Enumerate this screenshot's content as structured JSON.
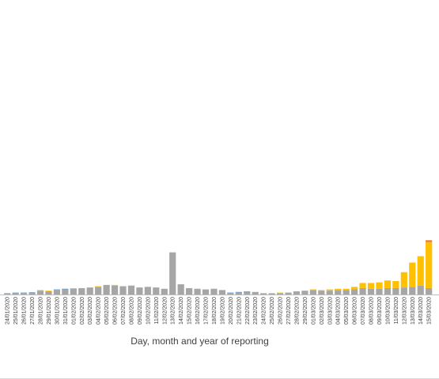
{
  "chart_data": {
    "type": "bar",
    "stacked": true,
    "xlabel": "Day, month and year of reporting",
    "ylabel": "",
    "legend": "none",
    "grid": false,
    "ylim": [
      0,
      90
    ],
    "categories": [
      "24/01/2020",
      "25/01/2020",
      "26/01/2020",
      "27/01/2020",
      "28/01/2020",
      "29/01/2020",
      "30/01/2020",
      "31/01/2020",
      "01/02/2020",
      "02/02/2020",
      "03/02/2020",
      "04/02/2020",
      "05/02/2020",
      "06/02/2020",
      "07/02/2020",
      "08/02/2020",
      "09/02/2020",
      "10/02/2020",
      "11/02/2020",
      "12/02/2020",
      "13/02/2020",
      "14/02/2020",
      "15/02/2020",
      "16/02/2020",
      "17/02/2020",
      "18/02/2020",
      "19/02/2020",
      "20/02/2020",
      "21/02/2020",
      "22/02/2020",
      "23/02/2020",
      "24/02/2020",
      "25/02/2020",
      "26/02/2020",
      "27/02/2020",
      "28/02/2020",
      "29/02/2020",
      "01/03/2020",
      "02/03/2020",
      "03/03/2020",
      "04/03/2020",
      "05/03/2020",
      "06/03/2020",
      "07/03/2020",
      "08/03/2020",
      "09/03/2020",
      "10/03/2020",
      "11/03/2020",
      "12/03/2020",
      "13/03/2020",
      "14/03/2020",
      "15/03/2020"
    ],
    "series": [
      {
        "color": "#a6a6a6",
        "values": [
          0.5,
          1,
          1.2,
          1.5,
          3,
          2.5,
          3.5,
          4,
          4.5,
          5,
          5.5,
          6,
          7.5,
          7,
          6.5,
          7,
          5.5,
          6,
          5.5,
          4.5,
          33,
          8,
          5,
          4.5,
          4,
          4.5,
          3.5,
          1,
          1.5,
          2,
          2,
          1,
          1,
          1,
          1.5,
          2.5,
          3,
          3.5,
          3,
          3,
          3.5,
          3.5,
          4,
          5,
          4.5,
          4.5,
          5,
          5,
          5.5,
          6,
          7,
          5
        ]
      },
      {
        "color": "#ffc000",
        "values": [
          0,
          0,
          0,
          0,
          0.5,
          0.5,
          0,
          0,
          0,
          0,
          0,
          0.5,
          0,
          0.5,
          0,
          0,
          0,
          0,
          0,
          0,
          0,
          0,
          0,
          0,
          0,
          0,
          0,
          0,
          0,
          0,
          0,
          0,
          0,
          0.5,
          0,
          0,
          0,
          0.5,
          0.5,
          1,
          1,
          1,
          2,
          4,
          4.5,
          5,
          6,
          5.5,
          12,
          19,
          23,
          36
        ]
      },
      {
        "color": "#ed7d31",
        "values": [
          0,
          0,
          0,
          0,
          0,
          0,
          0,
          0,
          0,
          0,
          0,
          0,
          0,
          0,
          0,
          0,
          0,
          0,
          0,
          0,
          0,
          0,
          0,
          0,
          0,
          0,
          0,
          0,
          0,
          0,
          0,
          0,
          0,
          0,
          0,
          0,
          0,
          0,
          0,
          0,
          0,
          0,
          0,
          0,
          0,
          0,
          0,
          0,
          0,
          0,
          0,
          1.5
        ]
      },
      {
        "color": "#5b9bd5",
        "values": [
          0.5,
          0.5,
          0.3,
          0.3,
          0,
          0,
          0.5,
          0.5,
          0.3,
          0,
          0,
          0,
          0,
          0,
          0,
          0,
          0,
          0,
          0,
          0,
          0,
          0,
          0,
          0,
          0,
          0,
          0,
          0.5,
          0.5,
          0.5,
          0,
          0,
          0,
          0,
          0,
          0,
          0,
          0,
          0,
          0,
          0,
          0,
          0,
          0,
          0,
          0,
          0,
          0,
          0,
          0,
          0,
          0
        ]
      }
    ]
  }
}
